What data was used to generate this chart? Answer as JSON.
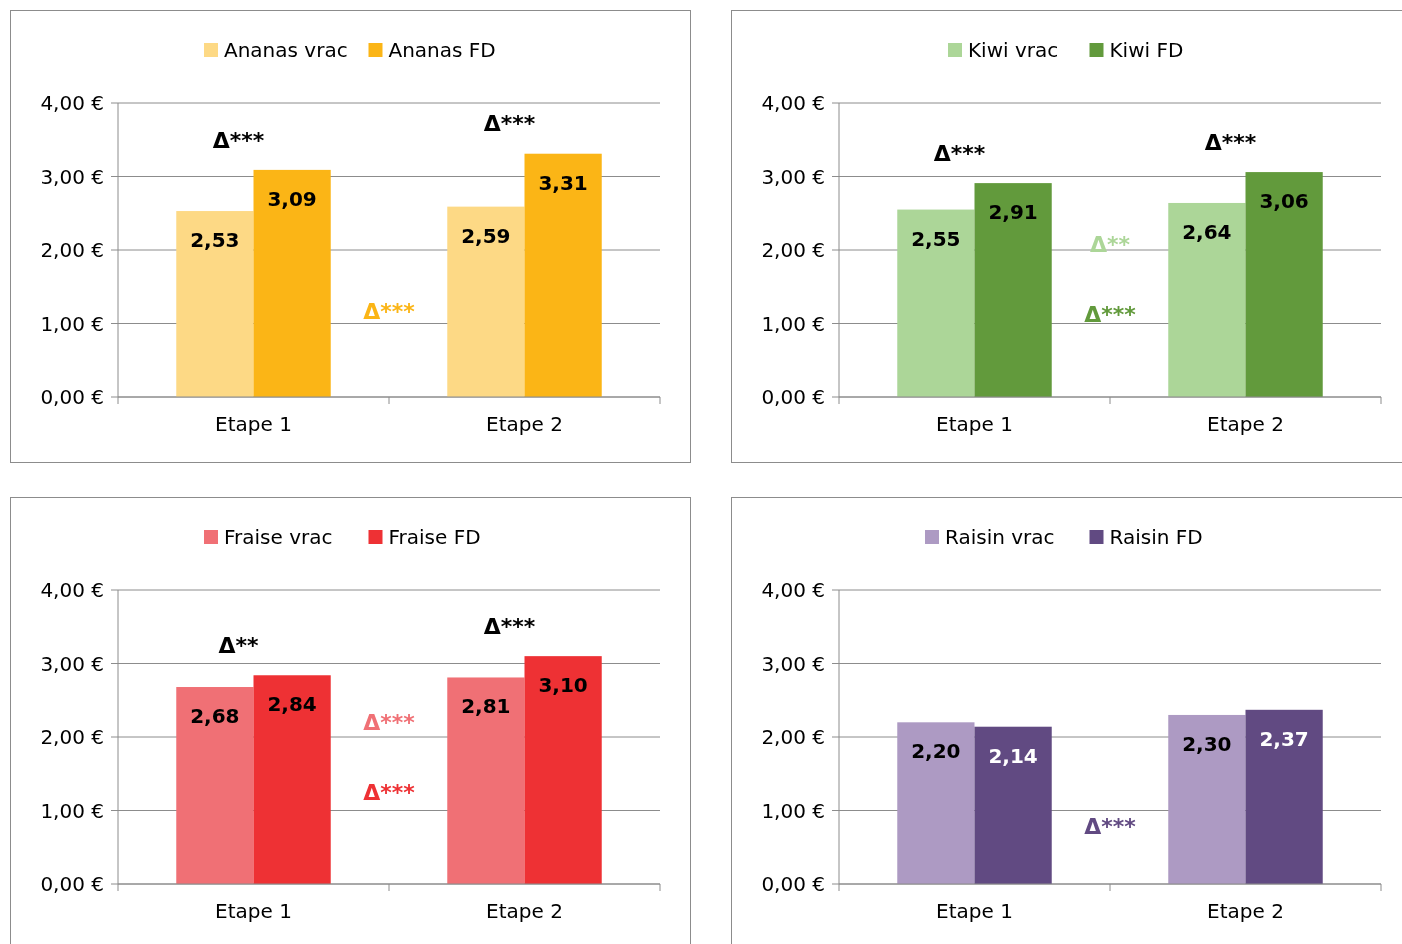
{
  "chart_data": [
    {
      "type": "bar",
      "categories": [
        "Etape 1",
        "Etape 2"
      ],
      "series": [
        {
          "name": "Ananas vrac",
          "color": "#fdd985",
          "values": [
            2.53,
            2.59
          ],
          "value_labels": [
            "2,53",
            "2,59"
          ]
        },
        {
          "name": "Ananas FD",
          "color": "#fbb516",
          "values": [
            3.09,
            3.31
          ],
          "value_labels": [
            "3,09",
            "3,31"
          ]
        }
      ],
      "ylim": [
        0,
        4
      ],
      "yticks": [
        {
          "value": 0,
          "label": "0,00 €"
        },
        {
          "value": 1,
          "label": "1,00 €"
        },
        {
          "value": 2,
          "label": "2,00 €"
        },
        {
          "value": 3,
          "label": "3,00 €"
        },
        {
          "value": 4,
          "label": "4,00 €"
        }
      ],
      "grid": "y",
      "legend": "top",
      "annotations": [
        "Δ***",
        "Δ***",
        "Δ***"
      ]
    },
    {
      "type": "bar",
      "categories": [
        "Etape 1",
        "Etape 2"
      ],
      "series": [
        {
          "name": "Kiwi vrac",
          "color": "#acd698",
          "values": [
            2.55,
            2.64
          ],
          "value_labels": [
            "2,55",
            "2,64"
          ]
        },
        {
          "name": "Kiwi FD",
          "color": "#629a3c",
          "values": [
            2.91,
            3.06
          ],
          "value_labels": [
            "2,91",
            "3,06"
          ]
        }
      ],
      "ylim": [
        0,
        4
      ],
      "yticks": [
        {
          "value": 0,
          "label": "0,00 €"
        },
        {
          "value": 1,
          "label": "1,00 €"
        },
        {
          "value": 2,
          "label": "2,00 €"
        },
        {
          "value": 3,
          "label": "3,00 €"
        },
        {
          "value": 4,
          "label": "4,00 €"
        }
      ],
      "grid": "y",
      "legend": "top",
      "annotations": [
        "Δ***",
        "Δ***",
        "Δ**",
        "Δ***"
      ]
    },
    {
      "type": "bar",
      "categories": [
        "Etape 1",
        "Etape 2"
      ],
      "series": [
        {
          "name": "Fraise vrac",
          "color": "#f07075",
          "values": [
            2.68,
            2.81
          ],
          "value_labels": [
            "2,68",
            "2,81"
          ]
        },
        {
          "name": "Fraise FD",
          "color": "#ee3134",
          "values": [
            2.84,
            3.1
          ],
          "value_labels": [
            "2,84",
            "3,10"
          ]
        }
      ],
      "ylim": [
        0,
        4
      ],
      "yticks": [
        {
          "value": 0,
          "label": "0,00 €"
        },
        {
          "value": 1,
          "label": "1,00 €"
        },
        {
          "value": 2,
          "label": "2,00 €"
        },
        {
          "value": 3,
          "label": "3,00 €"
        },
        {
          "value": 4,
          "label": "4,00 €"
        }
      ],
      "grid": "y",
      "legend": "top",
      "annotations": [
        "Δ**",
        "Δ***",
        "Δ***",
        "Δ***"
      ]
    },
    {
      "type": "bar",
      "categories": [
        "Etape 1",
        "Etape 2"
      ],
      "series": [
        {
          "name": "Raisin vrac",
          "color": "#ad9ac3",
          "values": [
            2.2,
            2.3
          ],
          "value_labels": [
            "2,20",
            "2,30"
          ]
        },
        {
          "name": "Raisin FD",
          "color": "#614a82",
          "values": [
            2.14,
            2.37
          ],
          "value_labels": [
            "2,14",
            "2,37"
          ]
        }
      ],
      "ylim": [
        0,
        4
      ],
      "yticks": [
        {
          "value": 0,
          "label": "0,00 €"
        },
        {
          "value": 1,
          "label": "1,00 €"
        },
        {
          "value": 2,
          "label": "2,00 €"
        },
        {
          "value": 3,
          "label": "3,00 €"
        },
        {
          "value": 4,
          "label": "4,00 €"
        }
      ],
      "grid": "y",
      "legend": "top",
      "annotations": [
        "Δ***"
      ]
    }
  ]
}
